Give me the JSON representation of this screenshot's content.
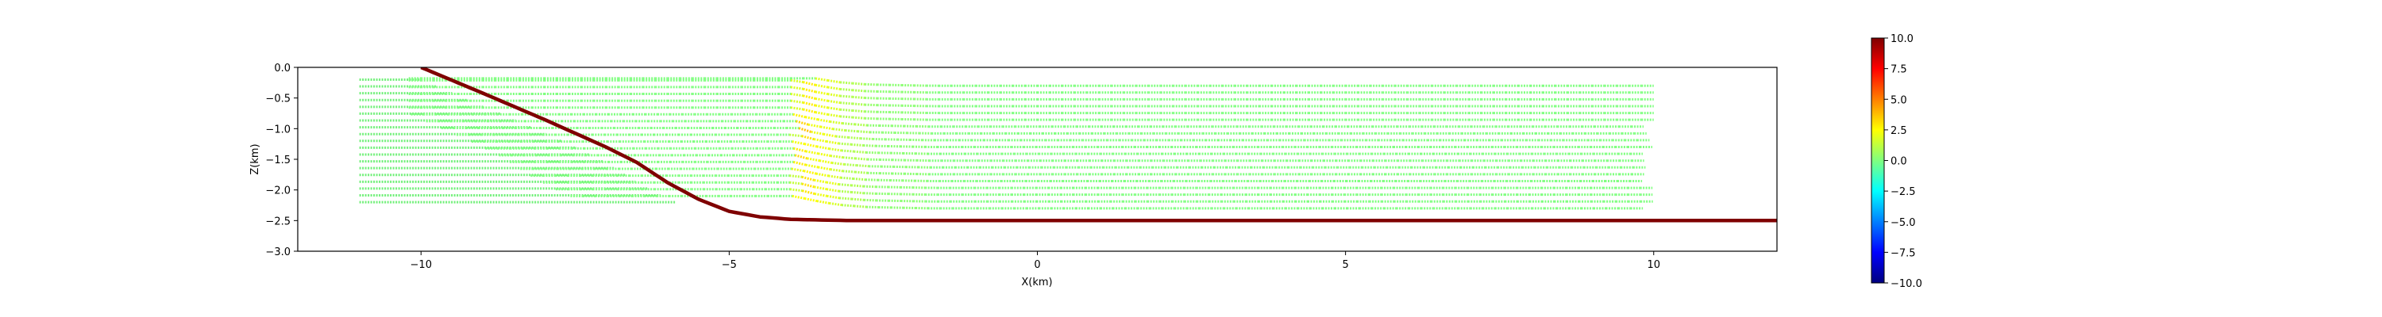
{
  "chart_data": {
    "type": "scatter",
    "title": "",
    "xlabel": "X(km)",
    "ylabel": "Z(km)",
    "xlim": [
      -12,
      12
    ],
    "ylim": [
      -3.0,
      0.0
    ],
    "xticks": [
      -10,
      -5,
      0,
      5,
      10
    ],
    "xtick_labels": [
      "−10",
      "−5",
      "0",
      "5",
      "10"
    ],
    "yticks": [
      0.0,
      -0.5,
      -1.0,
      -1.5,
      -2.0,
      -2.5,
      -3.0
    ],
    "ytick_labels": [
      "0.0",
      "−0.5",
      "−1.0",
      "−1.5",
      "−2.0",
      "−2.5",
      "−3.0"
    ],
    "fault": {
      "x": [
        -10,
        -9,
        -8,
        -7,
        -6.5,
        -6,
        -5.5,
        -5,
        -4.5,
        -4,
        -3,
        12
      ],
      "z": [
        0.0,
        -0.42,
        -0.85,
        -1.3,
        -1.55,
        -1.88,
        -2.15,
        -2.35,
        -2.44,
        -2.48,
        -2.5,
        -2.5
      ],
      "color": "#7f0000"
    },
    "layers": {
      "count": 19,
      "top_z": -0.2,
      "spacing_km": 0.1111,
      "x_right": 10,
      "hanging_wall_x_left": -11,
      "footwall_x_start_offset_km": 0.5
    },
    "colorbar": {
      "colormap": "jet",
      "vmin": -10.0,
      "vmax": 10.0,
      "ticks": [
        10.0,
        7.5,
        5.0,
        2.5,
        0.0,
        -2.5,
        -5.0,
        -7.5,
        -10.0
      ],
      "tick_labels": [
        "10.0",
        "7.5",
        "5.0",
        "2.5",
        "0.0",
        "−2.5",
        "−5.0",
        "−7.5",
        "−10.0"
      ]
    }
  }
}
